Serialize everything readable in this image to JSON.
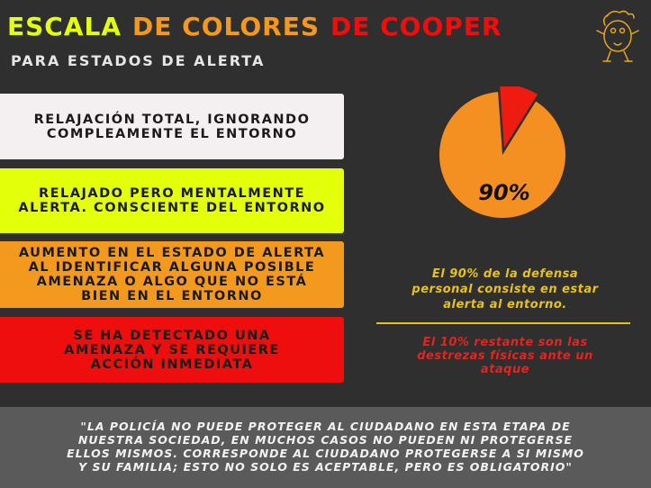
{
  "colors": {
    "background": "#2f2f2f",
    "white_level": "#f4eff0",
    "yellow_level": "#e3ff0a",
    "orange_level": "#f39a1e",
    "red_level": "#ee0e0e",
    "pie_orange": "#f48f21",
    "pie_red": "#ee1b10",
    "gold_text": "#e8c21a",
    "red_text": "#e32520",
    "quote_band": "#5a5a5a"
  },
  "title": {
    "word1": "ESCALA",
    "word2": "DE COLORES",
    "word3": "DE COOPER"
  },
  "subtitle": "PARA ESTADOS DE ALERTA",
  "levels": [
    {
      "line1": "RELAJACIÓN TOTAL, IGNORANDO",
      "line2": "COMPLEAMENTE EL ENTORNO",
      "line3": "",
      "line4": ""
    },
    {
      "line1": "RELAJADO PERO MENTALMENTE",
      "line2": "ALERTA. CONSCIENTE DEL ENTORNO",
      "line3": "",
      "line4": ""
    },
    {
      "line1": "AUMENTO EN EL ESTADO DE ALERTA",
      "line2": "AL IDENTIFICAR ALGUNA POSIBLE",
      "line3": "AMENAZA O  ALGO QUE NO ESTÁ",
      "line4": "BIEN EN EL ENTORNO"
    },
    {
      "line1": "SE HA DETECTADO UNA",
      "line2": "AMENAZA Y SE REQUIERE",
      "line3": "ACCIÓN INMEDIATA",
      "line4": ""
    }
  ],
  "pie": {
    "label": "90%",
    "alert_percent": 90,
    "skills_percent": 10
  },
  "stat_main": {
    "line1": "El 90% de la defensa",
    "line2": "personal consiste en estar",
    "line3": "alerta al entorno."
  },
  "stat_rest": {
    "line1": "El 10% restante son las",
    "line2": "destrezas físicas ante un",
    "line3": "ataque"
  },
  "quote": {
    "line1": "\"LA POLICÍA NO PUEDE PROTEGER AL CIUDADANO EN ESTA ETAPA DE",
    "line2": "NUESTRA SOCIEDAD, EN MUCHOS CASOS NO PUEDEN NI PROTEGERSE",
    "line3": "ELLOS MISMOS. CORRESPONDE AL CIUDADANO PROTEGERSE A SI MISMO",
    "line4": "Y SU  FAMILIA; ESTO NO SOLO ES ACEPTABLE, PERO ES OBLIGATORIO\""
  }
}
